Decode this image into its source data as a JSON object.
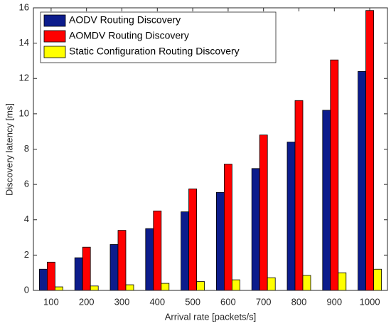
{
  "chart_data": {
    "type": "bar",
    "x_label": "Arrival rate [packets/s]",
    "y_label": "Discovery latency [ms]",
    "categories": [
      "100",
      "200",
      "300",
      "400",
      "500",
      "600",
      "700",
      "800",
      "900",
      "1000"
    ],
    "series": [
      {
        "name": "AODV Routing Discovery",
        "color": "#0c1c8c",
        "values": [
          1.2,
          1.85,
          2.6,
          3.5,
          4.45,
          5.55,
          6.9,
          8.4,
          10.2,
          12.4
        ]
      },
      {
        "name": "AOMDV Routing Discovery",
        "color": "#ff0000",
        "values": [
          1.6,
          2.45,
          3.4,
          4.5,
          5.75,
          7.15,
          8.8,
          10.75,
          13.05,
          15.85
        ]
      },
      {
        "name": "Static Configuration Routing Discovery",
        "color": "#ffff00",
        "values": [
          0.2,
          0.25,
          0.32,
          0.4,
          0.5,
          0.6,
          0.72,
          0.85,
          1.0,
          1.2
        ]
      }
    ],
    "ylim": [
      0,
      16
    ],
    "yticks": [
      0,
      2,
      4,
      6,
      8,
      10,
      12,
      14,
      16
    ],
    "legend": "upper-left",
    "grid": false
  }
}
